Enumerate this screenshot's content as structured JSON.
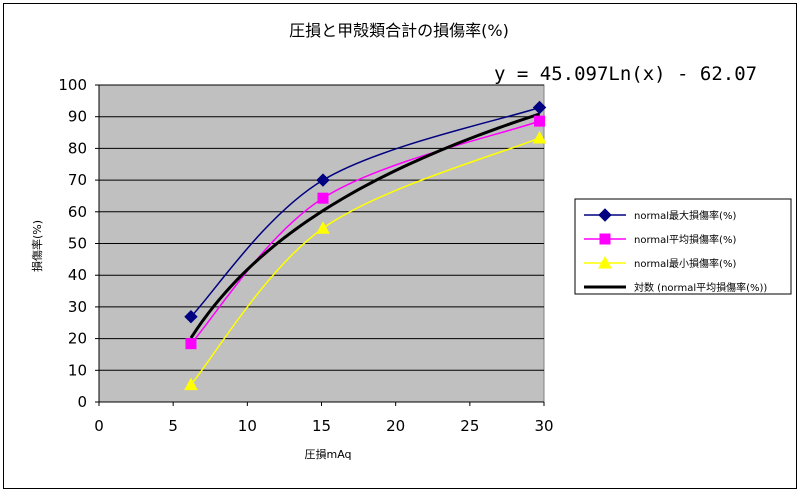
{
  "chart_data": {
    "type": "line",
    "title": "圧損と甲殻類合計の損傷率(%)",
    "trendline_equation": "y = 45.097Ln(x) - 62.07",
    "xlabel": "圧損mAq",
    "ylabel": "損傷率(%)",
    "xlim": [
      0,
      30
    ],
    "ylim": [
      0,
      100
    ],
    "x_ticks": [
      "0",
      "5",
      "10",
      "15",
      "20",
      "25",
      "30"
    ],
    "y_ticks": [
      "0",
      "10",
      "20",
      "30",
      "40",
      "50",
      "60",
      "70",
      "80",
      "90",
      "100"
    ],
    "grid": "horizontal",
    "plot_background": "#c0c0c0",
    "legend_position": "right",
    "series": [
      {
        "name": "normal最大損傷率(%)",
        "marker": "diamond",
        "color": "#000080",
        "x": [
          6.2,
          15.1,
          29.7
        ],
        "y": [
          26.9,
          70.0,
          92.9
        ]
      },
      {
        "name": "normal平均損傷率(%)",
        "marker": "square",
        "color": "#ff00ff",
        "x": [
          6.2,
          15.1,
          29.7
        ],
        "y": [
          18.4,
          64.3,
          88.6
        ]
      },
      {
        "name": "normal最小損傷率(%)",
        "marker": "triangle",
        "color": "#ffff00",
        "x": [
          6.2,
          15.1,
          29.7
        ],
        "y": [
          5.5,
          54.8,
          83.3
        ]
      },
      {
        "name": "対数 (normal平均損傷率(%))",
        "marker": "none",
        "color": "#000000",
        "trendline": {
          "type": "log",
          "a": 45.097,
          "b": -62.07
        }
      }
    ]
  }
}
